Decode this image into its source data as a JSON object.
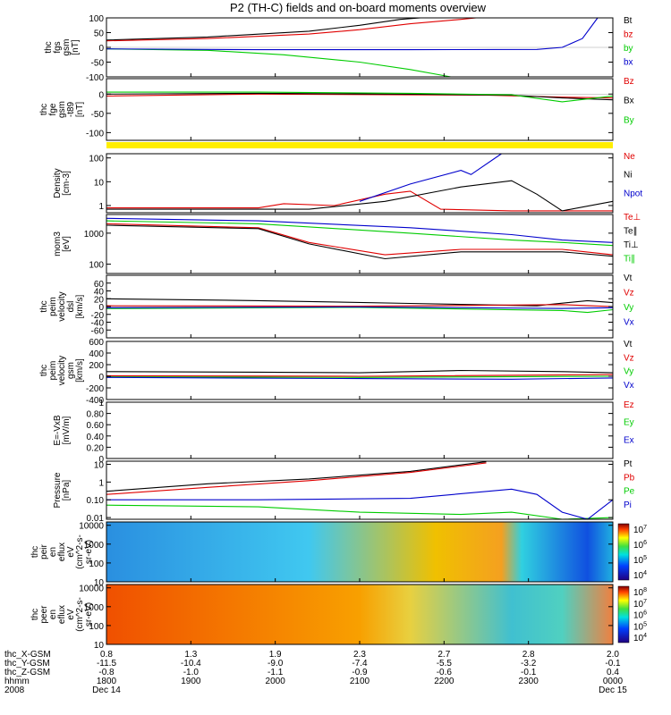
{
  "title": "P2 (TH-C) fields and on-board moments overview",
  "colors": {
    "black": "#000000",
    "red": "#e00000",
    "green": "#00cc00",
    "blue": "#0000cc",
    "yellow": "#ffee00"
  },
  "chart_data": [
    {
      "type": "line",
      "ylabel": [
        "thc",
        "fgs",
        "gsm",
        "[nT]"
      ],
      "ylim": [
        -100,
        100
      ],
      "yticks": [
        -100,
        -50,
        0,
        50,
        100
      ],
      "legend": [
        {
          "name": "Bt",
          "color": "#000000"
        },
        {
          "name": "bz",
          "color": "#e00000"
        },
        {
          "name": "by",
          "color": "#00cc00"
        },
        {
          "name": "bx",
          "color": "#0000cc"
        }
      ],
      "series": [
        {
          "name": "Bt",
          "color": "#000000",
          "x": [
            0,
            0.2,
            0.4,
            0.5,
            0.58,
            0.62
          ],
          "y": [
            25,
            35,
            55,
            75,
            95,
            100
          ]
        },
        {
          "name": "bz",
          "color": "#e00000",
          "x": [
            0,
            0.2,
            0.4,
            0.5,
            0.6,
            0.7,
            0.73
          ],
          "y": [
            22,
            30,
            45,
            60,
            80,
            95,
            100
          ]
        },
        {
          "name": "by",
          "color": "#00cc00",
          "x": [
            0,
            0.2,
            0.35,
            0.5,
            0.6,
            0.68
          ],
          "y": [
            -5,
            -10,
            -25,
            -50,
            -75,
            -100
          ]
        },
        {
          "name": "bx",
          "color": "#0000cc",
          "x": [
            0,
            0.3,
            0.6,
            0.85,
            0.9,
            0.94,
            0.97
          ],
          "y": [
            -5,
            -8,
            -8,
            -7,
            0,
            30,
            100
          ]
        }
      ]
    },
    {
      "type": "line",
      "ylabel": [
        "thc",
        "fge",
        "gsm",
        "-t89",
        "[nT]"
      ],
      "ylim": [
        -120,
        40
      ],
      "yticks": [
        -100,
        -50,
        0
      ],
      "legend": [
        {
          "name": "Bz",
          "color": "#e00000"
        },
        {
          "name": "Bx",
          "color": "#000000"
        },
        {
          "name": "By",
          "color": "#00cc00"
        }
      ],
      "series": [
        {
          "name": "Bz",
          "color": "#e00000",
          "x": [
            0,
            0.3,
            0.6,
            0.75,
            0.9,
            1.0
          ],
          "y": [
            -5,
            0,
            -2,
            -3,
            -8,
            -10
          ]
        },
        {
          "name": "Bx",
          "color": "#000000",
          "x": [
            0,
            0.3,
            0.6,
            0.8,
            0.9,
            1.0
          ],
          "y": [
            0,
            2,
            0,
            -3,
            -10,
            -15
          ]
        },
        {
          "name": "By",
          "color": "#00cc00",
          "x": [
            0,
            0.3,
            0.6,
            0.8,
            0.9,
            1.0
          ],
          "y": [
            5,
            5,
            2,
            -2,
            -20,
            -5
          ]
        }
      ]
    },
    {
      "type": "line",
      "ylabel": [
        "Density",
        "[cm-3]"
      ],
      "ylog": true,
      "ylim": [
        0.5,
        150
      ],
      "yticks": [
        1,
        10,
        100
      ],
      "legend": [
        {
          "name": "Ne",
          "color": "#e00000"
        },
        {
          "name": "Ni",
          "color": "#000000"
        },
        {
          "name": "Npot",
          "color": "#0000cc"
        }
      ],
      "series": [
        {
          "name": "Ne",
          "color": "#e00000",
          "x": [
            0,
            0.3,
            0.35,
            0.45,
            0.55,
            0.6,
            0.66,
            0.8,
            1.0
          ],
          "y": [
            0.8,
            0.8,
            1.2,
            1.0,
            3,
            4,
            0.7,
            0.6,
            0.6
          ]
        },
        {
          "name": "Ni",
          "color": "#000000",
          "x": [
            0,
            0.4,
            0.55,
            0.7,
            0.8,
            0.85,
            0.9,
            1.0
          ],
          "y": [
            0.7,
            0.7,
            1.5,
            6,
            11,
            3,
            0.6,
            1.5
          ]
        },
        {
          "name": "Npot",
          "color": "#0000cc",
          "x": [
            0.5,
            0.6,
            0.7,
            0.72,
            0.78
          ],
          "y": [
            1.5,
            8,
            30,
            20,
            150
          ]
        }
      ]
    },
    {
      "type": "line",
      "ylabel": [
        "mom3",
        "[eV]"
      ],
      "ylog": true,
      "ylim": [
        50,
        4000
      ],
      "yticks": [
        100,
        1000
      ],
      "legend": [
        {
          "name": "Te⊥",
          "color": "#e00000"
        },
        {
          "name": "Te∥",
          "color": "#000000"
        },
        {
          "name": "Ti⊥",
          "color": "#000000"
        },
        {
          "name": "Ti∥",
          "color": "#00cc00"
        }
      ],
      "series": [
        {
          "name": "Te⊥",
          "color": "#e00000",
          "x": [
            0,
            0.3,
            0.4,
            0.55,
            0.7,
            0.9,
            1.0
          ],
          "y": [
            2000,
            1500,
            500,
            200,
            300,
            300,
            200
          ]
        },
        {
          "name": "Te∥",
          "color": "#000000",
          "x": [
            0,
            0.3,
            0.4,
            0.55,
            0.7,
            0.9,
            1.0
          ],
          "y": [
            1800,
            1400,
            450,
            150,
            250,
            250,
            180
          ]
        },
        {
          "name": "Ti⊥",
          "color": "#0000cc",
          "x": [
            0,
            0.3,
            0.6,
            0.8,
            0.9,
            1.0
          ],
          "y": [
            3000,
            2500,
            1500,
            900,
            600,
            500
          ]
        },
        {
          "name": "Ti∥",
          "color": "#00cc00",
          "x": [
            0,
            0.3,
            0.6,
            0.8,
            0.9,
            1.0
          ],
          "y": [
            2500,
            2000,
            1000,
            600,
            500,
            400
          ]
        }
      ]
    },
    {
      "type": "line",
      "ylabel": [
        "thc",
        "peim",
        "velocity",
        "dsl",
        "[km/s]"
      ],
      "ylim": [
        -80,
        80
      ],
      "yticks": [
        -60,
        -40,
        -20,
        0,
        20,
        40,
        60
      ],
      "legend": [
        {
          "name": "Vt",
          "color": "#000000"
        },
        {
          "name": "Vz",
          "color": "#e00000"
        },
        {
          "name": "Vy",
          "color": "#00cc00"
        },
        {
          "name": "Vx",
          "color": "#0000cc"
        }
      ],
      "series": [
        {
          "name": "Vt",
          "color": "#000000",
          "x": [
            0,
            0.3,
            0.6,
            0.85,
            0.95,
            1.0
          ],
          "y": [
            20,
            15,
            8,
            2,
            15,
            10
          ]
        },
        {
          "name": "Vz",
          "color": "#e00000",
          "x": [
            0,
            0.5,
            0.9,
            1.0
          ],
          "y": [
            2,
            1,
            5,
            0
          ]
        },
        {
          "name": "Vy",
          "color": "#00cc00",
          "x": [
            0,
            0.5,
            0.9,
            0.95,
            1.0
          ],
          "y": [
            -5,
            -2,
            -10,
            -15,
            -8
          ]
        },
        {
          "name": "Vx",
          "color": "#0000cc",
          "x": [
            0,
            0.5,
            0.9,
            1.0
          ],
          "y": [
            -3,
            -1,
            -5,
            -3
          ]
        }
      ]
    },
    {
      "type": "line",
      "ylabel": [
        "thc",
        "peim",
        "velocity",
        "gsm",
        "[km/s]"
      ],
      "ylim": [
        -400,
        600
      ],
      "yticks": [
        -400,
        -200,
        0,
        200,
        400,
        600
      ],
      "legend": [
        {
          "name": "Vt",
          "color": "#000000"
        },
        {
          "name": "Vz",
          "color": "#e00000"
        },
        {
          "name": "Vy",
          "color": "#00cc00"
        },
        {
          "name": "Vx",
          "color": "#0000cc"
        }
      ],
      "series": [
        {
          "name": "Vt",
          "color": "#000000",
          "x": [
            0,
            0.3,
            0.5,
            0.7,
            0.9,
            1.0
          ],
          "y": [
            80,
            70,
            60,
            100,
            80,
            60
          ]
        },
        {
          "name": "Vz",
          "color": "#e00000",
          "x": [
            0,
            0.5,
            1.0
          ],
          "y": [
            10,
            0,
            30
          ]
        },
        {
          "name": "Vy",
          "color": "#00cc00",
          "x": [
            0,
            0.5,
            1.0
          ],
          "y": [
            -10,
            -20,
            0
          ]
        },
        {
          "name": "Vx",
          "color": "#0000cc",
          "x": [
            0,
            0.5,
            0.8,
            1.0
          ],
          "y": [
            -20,
            -40,
            -50,
            -30
          ]
        }
      ]
    },
    {
      "type": "line",
      "ylabel": [
        "E=-VxB",
        "[mV/m]"
      ],
      "ylim": [
        0,
        1.0
      ],
      "yticks": [
        0.0,
        0.2,
        0.4,
        0.6,
        0.8,
        1.0
      ],
      "legend": [
        {
          "name": "Ez",
          "color": "#e00000"
        },
        {
          "name": "Ey",
          "color": "#00cc00"
        },
        {
          "name": "Ex",
          "color": "#0000cc"
        }
      ],
      "series": []
    },
    {
      "type": "line",
      "ylabel": [
        "Pressure",
        "[nPa]"
      ],
      "ylog": true,
      "ylim": [
        0.008,
        15
      ],
      "yticks": [
        0.01,
        0.1,
        1.0,
        10.0
      ],
      "legend": [
        {
          "name": "Pt",
          "color": "#000000"
        },
        {
          "name": "Pb",
          "color": "#e00000"
        },
        {
          "name": "Pe",
          "color": "#00cc00"
        },
        {
          "name": "Pi",
          "color": "#0000cc"
        }
      ],
      "series": [
        {
          "name": "Pt",
          "color": "#000000",
          "x": [
            0,
            0.2,
            0.4,
            0.6,
            0.75
          ],
          "y": [
            0.3,
            0.8,
            1.5,
            4,
            14
          ]
        },
        {
          "name": "Pb",
          "color": "#e00000",
          "x": [
            0,
            0.2,
            0.4,
            0.6,
            0.75
          ],
          "y": [
            0.2,
            0.5,
            1.2,
            3.5,
            12
          ]
        },
        {
          "name": "Pe",
          "color": "#00cc00",
          "x": [
            0,
            0.3,
            0.5,
            0.7,
            0.8,
            0.9,
            1.0
          ],
          "y": [
            0.05,
            0.04,
            0.02,
            0.015,
            0.02,
            0.008,
            0.01
          ]
        },
        {
          "name": "Pi",
          "color": "#0000cc",
          "x": [
            0,
            0.3,
            0.6,
            0.8,
            0.85,
            0.9,
            0.95,
            1.0
          ],
          "y": [
            0.1,
            0.1,
            0.12,
            0.4,
            0.2,
            0.02,
            0.008,
            0.1
          ]
        }
      ]
    },
    {
      "type": "heatmap",
      "ylabel": [
        "thc",
        "peir",
        "en",
        "eflux",
        "eV",
        "(cm^2-s-",
        "sr-eV)"
      ],
      "ylog": true,
      "ylim": [
        10,
        15000
      ],
      "yticks": [
        10,
        100,
        1000,
        10000
      ],
      "colorbar": {
        "ticks": [
          "10^4",
          "10^5",
          "10^6",
          "10^7"
        ]
      }
    },
    {
      "type": "heatmap",
      "ylabel": [
        "thc",
        "peer",
        "en",
        "eflux",
        "eV",
        "(cm^2-s-",
        "sr-eV)"
      ],
      "ylog": true,
      "ylim": [
        10,
        15000
      ],
      "yticks": [
        10,
        100,
        1000,
        10000
      ],
      "colorbar": {
        "ticks": [
          "10^4",
          "10^5",
          "10^6",
          "10^7",
          "10^8"
        ]
      }
    }
  ],
  "x_axis": {
    "row_labels": [
      "thc_X-GSM",
      "thc_Y-GSM",
      "thc_Z-GSM",
      "hhmm",
      "2008"
    ],
    "ticks": [
      {
        "x": "0.8",
        "y": "-11.5",
        "z": "-0.8",
        "hhmm": "1800",
        "date": "Dec 14"
      },
      {
        "x": "1.3",
        "y": "-10.4",
        "z": "-1.0",
        "hhmm": "1900",
        "date": ""
      },
      {
        "x": "1.9",
        "y": "-9.0",
        "z": "-1.1",
        "hhmm": "2000",
        "date": ""
      },
      {
        "x": "2.3",
        "y": "-7.4",
        "z": "-0.9",
        "hhmm": "2100",
        "date": ""
      },
      {
        "x": "2.7",
        "y": "-5.5",
        "z": "-0.6",
        "hhmm": "2200",
        "date": ""
      },
      {
        "x": "2.8",
        "y": "-3.2",
        "z": "-0.1",
        "hhmm": "2300",
        "date": ""
      },
      {
        "x": "2.0",
        "y": "-0.1",
        "z": "0.4",
        "hhmm": "0000",
        "date": "Dec 15"
      }
    ]
  }
}
